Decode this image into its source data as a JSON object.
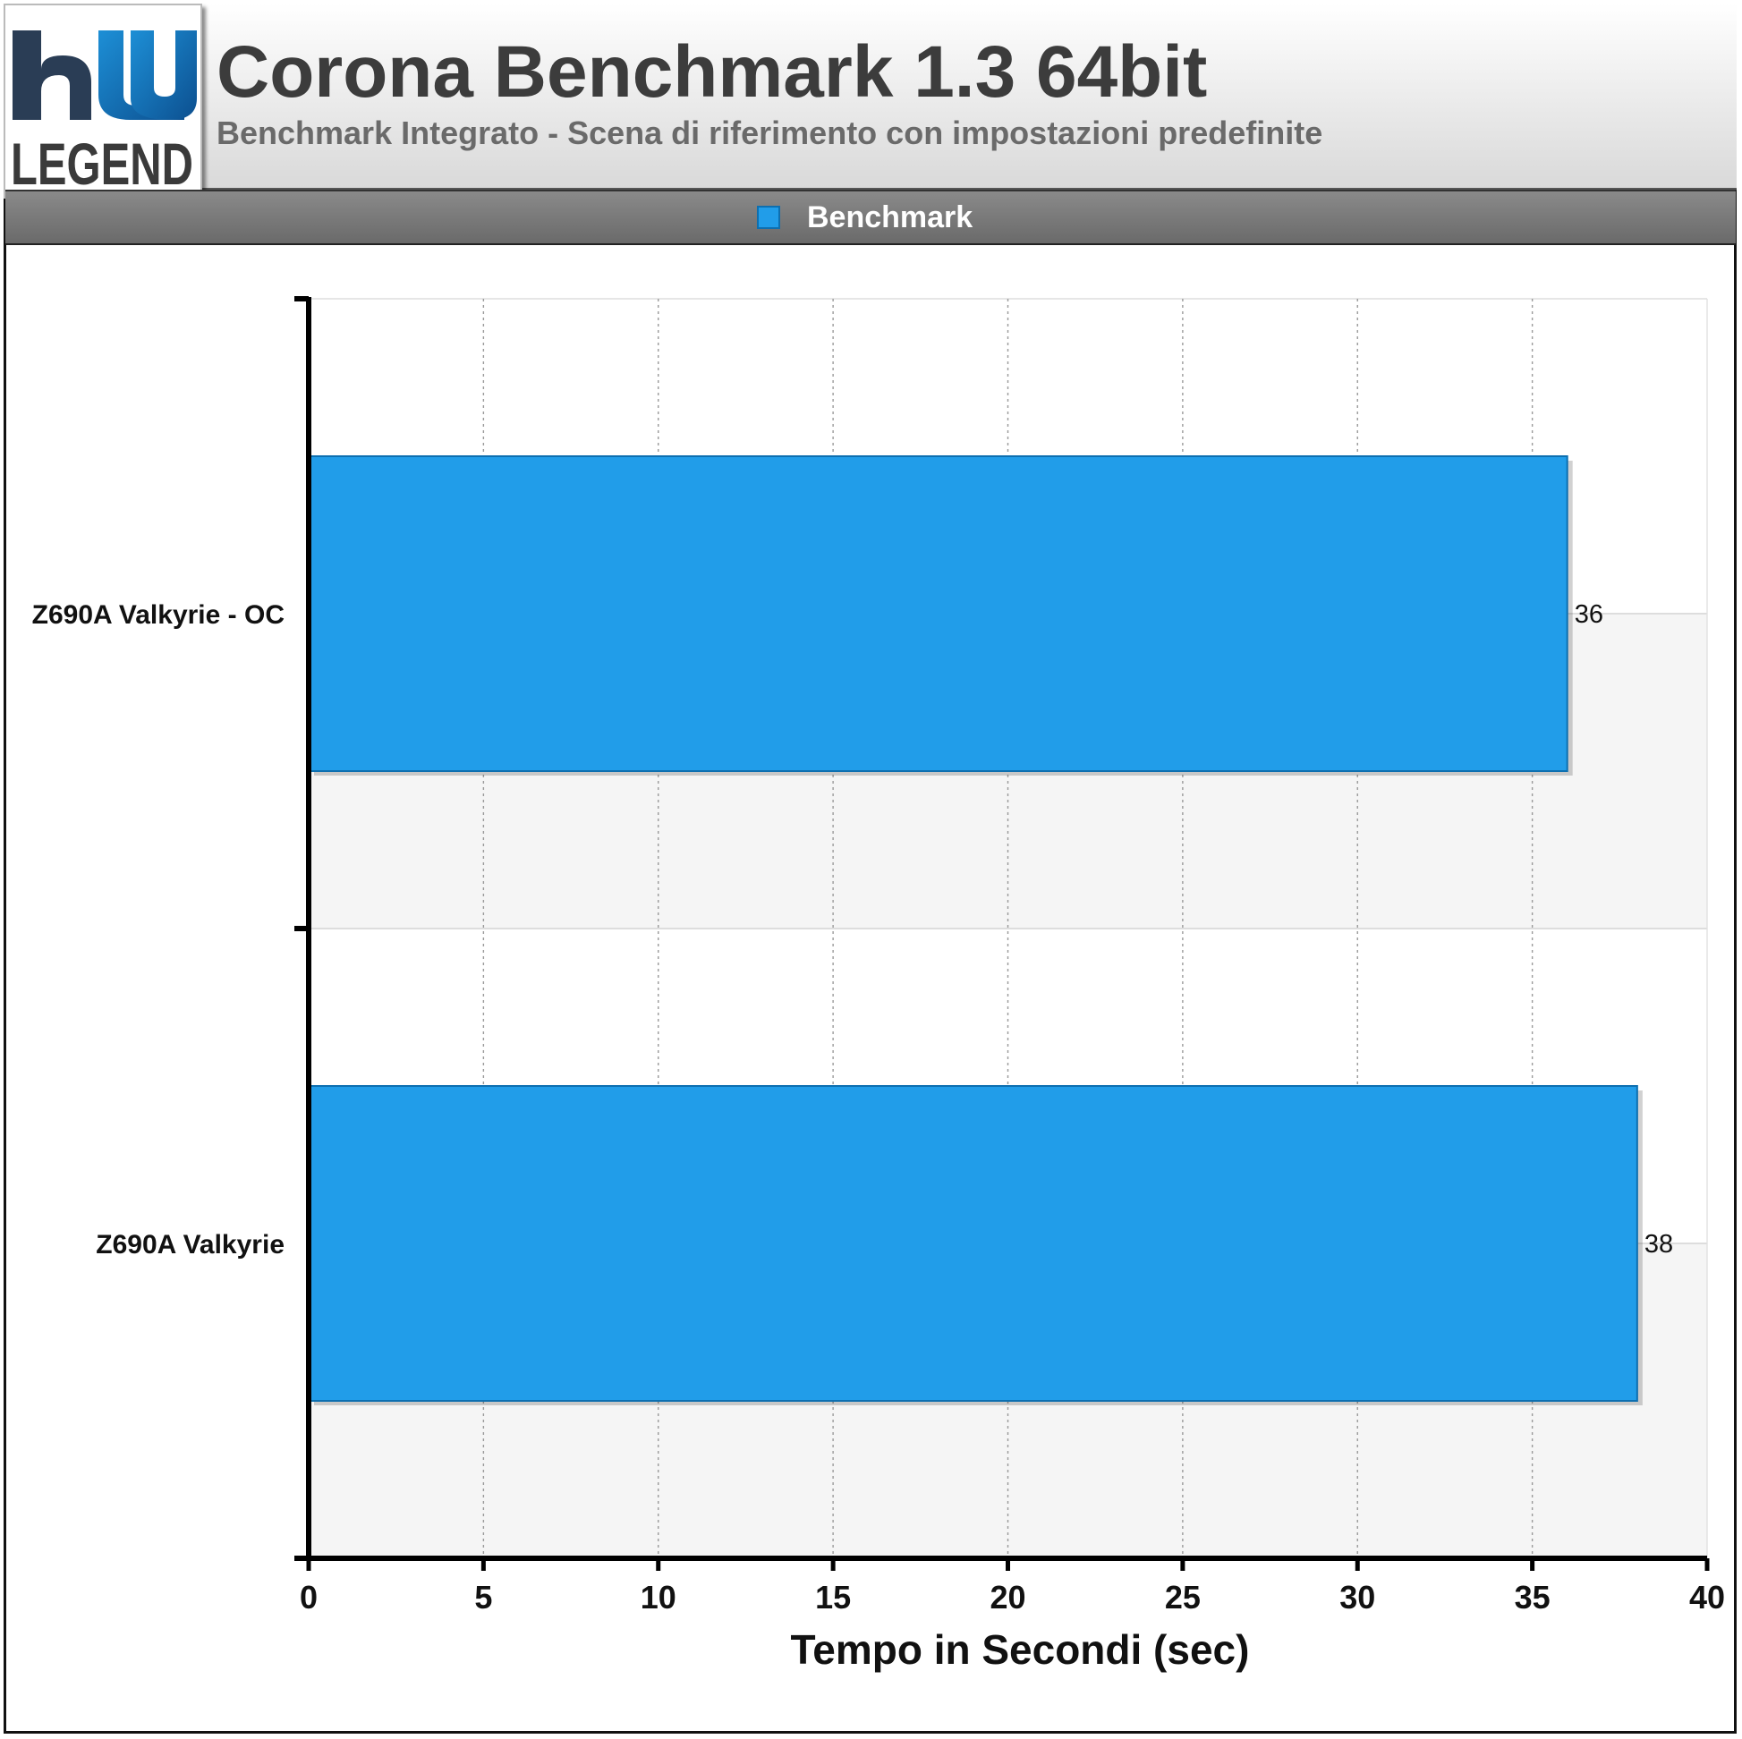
{
  "header": {
    "title": "Corona Benchmark 1.3 64bit",
    "subtitle": "Benchmark Integrato - Scena di riferimento con impostazioni predefinite",
    "logo_text": "LEGEND"
  },
  "colors": {
    "bar": "#219de9",
    "bar_border": "#0d6fb0",
    "logo_blue": "#1673b8"
  },
  "chart_data": {
    "type": "bar",
    "orientation": "horizontal",
    "categories": [
      "Z690A Valkyrie - OC",
      "Z690A Valkyrie"
    ],
    "series": [
      {
        "name": "Benchmark",
        "values": [
          36,
          38
        ]
      }
    ],
    "xlabel": "Tempo in Secondi (sec)",
    "ylabel": "",
    "xlim": [
      0,
      40
    ],
    "xticks": [
      "0",
      "5",
      "10",
      "15",
      "20",
      "25",
      "30",
      "35",
      "40"
    ],
    "grid": true,
    "legend_position": "top"
  }
}
